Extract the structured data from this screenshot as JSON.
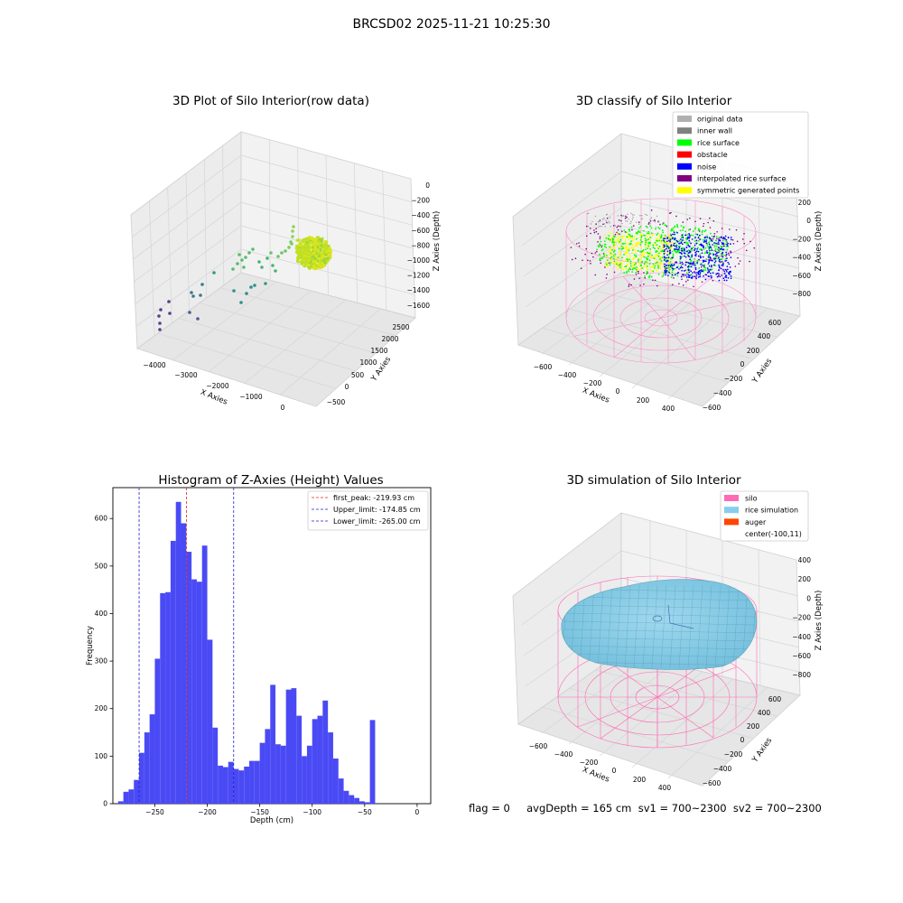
{
  "figure": {
    "suptitle": "BRCSD02 2025-11-21 10:25:30",
    "footer": "flag = 0     avgDepth = 165 cm  sv1 = 700~2300  sv2 = 700~2300"
  },
  "colors": {
    "hist_bar": "#4a4af5",
    "first_peak_line": "#d62728",
    "limit_lines": "#1f1fd0",
    "pane": "#f2f2f2",
    "grid": "#d8d8d8",
    "silo_pink": "#ff69b4",
    "rice_sim": "#87ceeb",
    "auger": "#ff4500"
  },
  "chart_data": [
    {
      "type": "scatter",
      "subtype": "3d",
      "title": "3D Plot of Silo Interior(row data)",
      "xlabel": "X Axies",
      "ylabel": "Y Axies",
      "zlabel": "Z Axies (Depth)",
      "xticks": [
        "−4000",
        "−3000",
        "−2000",
        "−1000",
        "0"
      ],
      "yticks": [
        "−500",
        "0",
        "500",
        "1000",
        "1500",
        "2000",
        "2500"
      ],
      "zticks": [
        "0",
        "−200",
        "−400",
        "−600",
        "−800",
        "−1000",
        "−1200",
        "−1400",
        "−1600"
      ],
      "colormap": "viridis",
      "description_points": "sparse points trailing from far corner to dense yellow-green cluster near z≈-800"
    },
    {
      "type": "scatter",
      "subtype": "3d",
      "title": "3D classify of Silo Interior",
      "xlabel": "X Axies",
      "ylabel": "Y Axies",
      "zlabel": "Z Axies (Depth)",
      "xticks": [
        "−600",
        "−400",
        "−200",
        "0",
        "200",
        "400"
      ],
      "yticks": [
        "−600",
        "−400",
        "−200",
        "0",
        "200",
        "400",
        "600"
      ],
      "zticks": [
        "200",
        "0",
        "−200",
        "−400",
        "−600",
        "−800"
      ],
      "legend_position": "top-right",
      "legend": [
        {
          "label": "original data",
          "color": "#b0b0b0"
        },
        {
          "label": "inner wall",
          "color": "#808080"
        },
        {
          "label": "rice surface",
          "color": "#00ff00"
        },
        {
          "label": "obstacle",
          "color": "#ff0000"
        },
        {
          "label": "noise",
          "color": "#0000ff"
        },
        {
          "label": "interpolated rice surface",
          "color": "#800080"
        },
        {
          "label": "symmetric generated points",
          "color": "#ffff00"
        }
      ]
    },
    {
      "type": "bar",
      "subtype": "histogram",
      "title": "Histogram of Z-Axies (Height) Values",
      "xlabel": "Depth (cm)",
      "ylabel": "Frequency",
      "xlim": [
        -290,
        13
      ],
      "ylim": [
        0,
        665
      ],
      "xticks": [
        -250,
        -200,
        -150,
        -100,
        -50,
        0
      ],
      "xtick_labels": [
        "−250",
        "−200",
        "−150",
        "−100",
        "−50",
        "0"
      ],
      "yticks": [
        0,
        100,
        200,
        300,
        400,
        500,
        600
      ],
      "bin_start": -285,
      "bin_width": 5,
      "values": [
        5,
        25,
        30,
        50,
        107,
        150,
        188,
        305,
        443,
        445,
        553,
        635,
        590,
        530,
        472,
        467,
        543,
        345,
        160,
        80,
        77,
        88,
        73,
        70,
        78,
        90,
        90,
        128,
        157,
        250,
        125,
        122,
        240,
        243,
        185,
        100,
        122,
        178,
        185,
        217,
        150,
        95,
        53,
        27,
        18,
        12,
        5,
        3,
        176
      ],
      "vlines": [
        {
          "name": "first_peak",
          "x": -219.93,
          "label": "first_peak: -219.93 cm",
          "color": "#d62728"
        },
        {
          "name": "upper_limit",
          "x": -174.85,
          "label": "Upper_limit: -174.85 cm",
          "color": "#1f1fd0"
        },
        {
          "name": "lower_limit",
          "x": -265.0,
          "label": "Lower_limit: -265.00 cm",
          "color": "#1f1fd0"
        }
      ],
      "legend_position": "top-right"
    },
    {
      "type": "area",
      "subtype": "3d-surface",
      "title": "3D simulation of Silo Interior",
      "xlabel": "X Axies",
      "ylabel": "Y Axies",
      "zlabel": "Z Axies (Depth)",
      "xticks": [
        "−600",
        "−400",
        "−200",
        "0",
        "200",
        "400"
      ],
      "yticks": [
        "−600",
        "−400",
        "−200",
        "0",
        "200",
        "400",
        "600"
      ],
      "zticks": [
        "400",
        "200",
        "0",
        "−200",
        "−400",
        "−600",
        "−800"
      ],
      "legend_position": "top-right",
      "legend": [
        {
          "label": "silo",
          "color": "#ff69b4"
        },
        {
          "label": "rice simulation",
          "color": "#87ceeb"
        },
        {
          "label": "auger",
          "color": "#ff4500"
        },
        {
          "label": "center(-100,11)",
          "color": ""
        }
      ]
    }
  ]
}
